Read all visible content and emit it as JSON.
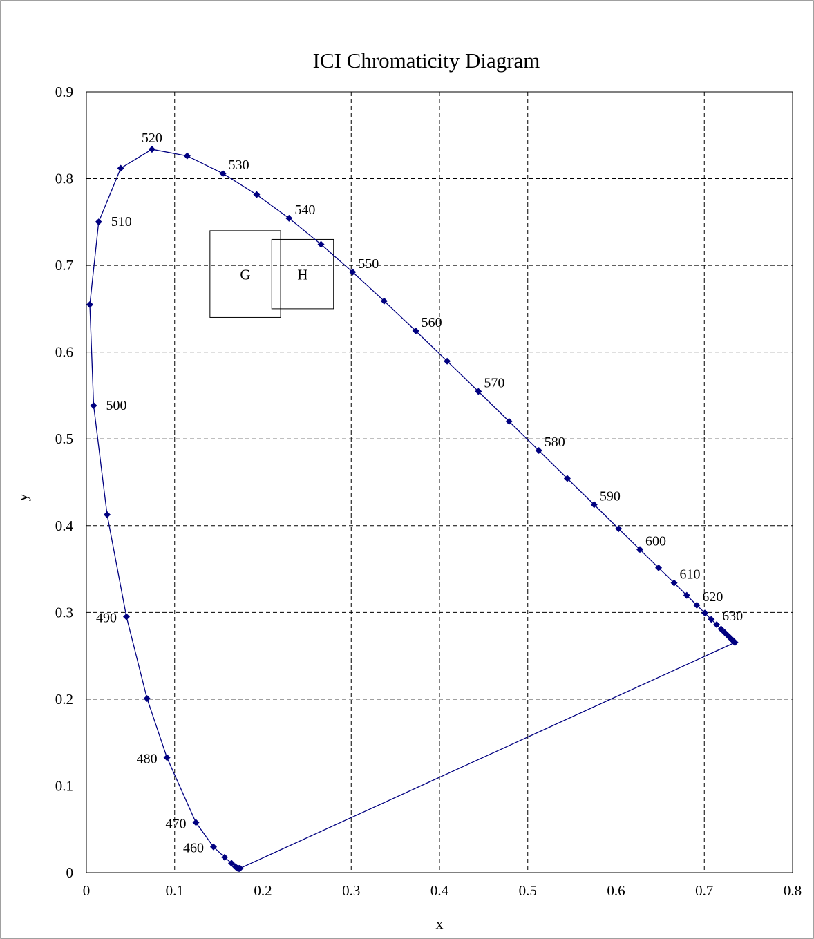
{
  "chart_data": {
    "type": "scatter",
    "title": "ICI Chromaticity Diagram",
    "xlabel": "x",
    "ylabel": "y",
    "xlim": [
      0,
      0.8
    ],
    "ylim": [
      0,
      0.9
    ],
    "xticks": [
      "0",
      "0.1",
      "0.2",
      "0.3",
      "0.4",
      "0.5",
      "0.6",
      "0.7",
      "0.8"
    ],
    "yticks": [
      "0",
      "0.1",
      "0.2",
      "0.3",
      "0.4",
      "0.5",
      "0.6",
      "0.7",
      "0.8",
      "0.9"
    ],
    "grid": true,
    "series": [
      {
        "color": "#000080",
        "markers": "diamond",
        "points": [
          [
            0.1741,
            0.005
          ],
          [
            0.1736,
            0.0049
          ],
          [
            0.1733,
            0.0048
          ],
          [
            0.1726,
            0.0048
          ],
          [
            0.1714,
            0.0051
          ],
          [
            0.1689,
            0.0069
          ],
          [
            0.1644,
            0.0109
          ],
          [
            0.1566,
            0.0177
          ],
          [
            0.144,
            0.0297
          ],
          [
            0.1241,
            0.0578
          ],
          [
            0.0913,
            0.1327
          ],
          [
            0.0687,
            0.2007
          ],
          [
            0.0454,
            0.295
          ],
          [
            0.0235,
            0.4127
          ],
          [
            0.0082,
            0.5384
          ],
          [
            0.0039,
            0.6548
          ],
          [
            0.0139,
            0.7502
          ],
          [
            0.0389,
            0.812
          ],
          [
            0.0743,
            0.8338
          ],
          [
            0.1142,
            0.8262
          ],
          [
            0.1547,
            0.8059
          ],
          [
            0.1929,
            0.7816
          ],
          [
            0.2296,
            0.7543
          ],
          [
            0.2658,
            0.7243
          ],
          [
            0.3016,
            0.6923
          ],
          [
            0.3373,
            0.6589
          ],
          [
            0.3731,
            0.6245
          ],
          [
            0.4087,
            0.5896
          ],
          [
            0.4441,
            0.5547
          ],
          [
            0.4788,
            0.5202
          ],
          [
            0.5125,
            0.4866
          ],
          [
            0.5448,
            0.4544
          ],
          [
            0.5752,
            0.4242
          ],
          [
            0.6029,
            0.3965
          ],
          [
            0.627,
            0.3725
          ],
          [
            0.6482,
            0.3514
          ],
          [
            0.6658,
            0.334
          ],
          [
            0.6801,
            0.3197
          ],
          [
            0.6915,
            0.3083
          ],
          [
            0.7006,
            0.2993
          ],
          [
            0.7079,
            0.292
          ],
          [
            0.714,
            0.2859
          ],
          [
            0.719,
            0.2809
          ],
          [
            0.723,
            0.277
          ],
          [
            0.726,
            0.274
          ],
          [
            0.7283,
            0.2717
          ],
          [
            0.73,
            0.27
          ],
          [
            0.7311,
            0.2689
          ],
          [
            0.732,
            0.268
          ],
          [
            0.7327,
            0.2673
          ],
          [
            0.7334,
            0.2666
          ],
          [
            0.734,
            0.266
          ],
          [
            0.7344,
            0.2656
          ],
          [
            0.7346,
            0.2654
          ],
          [
            0.7347,
            0.2653
          ]
        ]
      }
    ],
    "wavelength_labels": [
      {
        "text": "460",
        "x": 0.144,
        "y": 0.0297,
        "pos": "left"
      },
      {
        "text": "470",
        "x": 0.1241,
        "y": 0.0578,
        "pos": "left"
      },
      {
        "text": "480",
        "x": 0.0913,
        "y": 0.1327,
        "pos": "left"
      },
      {
        "text": "490",
        "x": 0.0454,
        "y": 0.295,
        "pos": "left"
      },
      {
        "text": "500",
        "x": 0.0082,
        "y": 0.5384,
        "pos": "right"
      },
      {
        "text": "510",
        "x": 0.0139,
        "y": 0.7502,
        "pos": "right"
      },
      {
        "text": "520",
        "x": 0.0743,
        "y": 0.8338,
        "pos": "above"
      },
      {
        "text": "530",
        "x": 0.1547,
        "y": 0.8059,
        "pos": "upright"
      },
      {
        "text": "540",
        "x": 0.2296,
        "y": 0.7543,
        "pos": "upright"
      },
      {
        "text": "550",
        "x": 0.3016,
        "y": 0.6923,
        "pos": "upright"
      },
      {
        "text": "560",
        "x": 0.3731,
        "y": 0.6245,
        "pos": "upright"
      },
      {
        "text": "570",
        "x": 0.4441,
        "y": 0.5547,
        "pos": "upright"
      },
      {
        "text": "580",
        "x": 0.5125,
        "y": 0.4866,
        "pos": "upright"
      },
      {
        "text": "590",
        "x": 0.5752,
        "y": 0.4242,
        "pos": "upright"
      },
      {
        "text": "600",
        "x": 0.627,
        "y": 0.3725,
        "pos": "upright"
      },
      {
        "text": "610",
        "x": 0.6658,
        "y": 0.334,
        "pos": "upright"
      },
      {
        "text": "620",
        "x": 0.6915,
        "y": 0.3083,
        "pos": "upright"
      },
      {
        "text": "630",
        "x": 0.714,
        "y": 0.2859,
        "pos": "upright"
      }
    ],
    "regions": [
      {
        "label": "G",
        "x0": 0.14,
        "x1": 0.22,
        "y0": 0.64,
        "y1": 0.74
      },
      {
        "label": "H",
        "x0": 0.21,
        "x1": 0.28,
        "y0": 0.65,
        "y1": 0.73
      }
    ]
  }
}
